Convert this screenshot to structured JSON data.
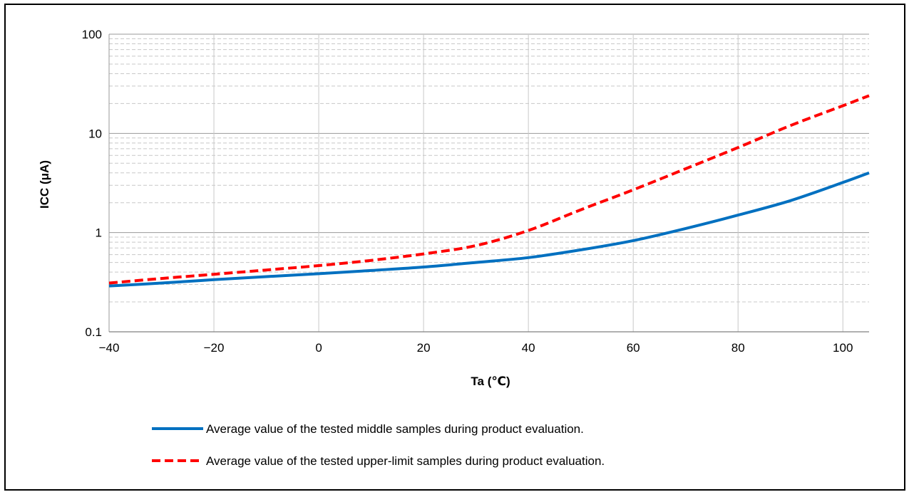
{
  "chart_data": {
    "type": "line",
    "title": "",
    "xlabel": "Ta (℃)",
    "ylabel": "ICC (μA)",
    "xlim": [
      -40,
      105
    ],
    "ylim": [
      0.1,
      100
    ],
    "yscale": "log",
    "grid": true,
    "x_ticks": [
      "−40",
      "−20",
      "0",
      "20",
      "40",
      "60",
      "80",
      "100"
    ],
    "x_tick_values": [
      -40,
      -20,
      0,
      20,
      40,
      60,
      80,
      100
    ],
    "y_ticks": [
      "0.1",
      "1",
      "10",
      "100"
    ],
    "y_tick_values": [
      0.1,
      1,
      10,
      100
    ],
    "legend_position": "bottom",
    "series": [
      {
        "name": "Average value of the tested middle samples during product evaluation.",
        "color": "#0070c0",
        "style": "solid",
        "x": [
          -40,
          -30,
          -20,
          -10,
          0,
          10,
          20,
          30,
          40,
          50,
          60,
          70,
          80,
          90,
          100,
          105
        ],
        "y": [
          0.29,
          0.31,
          0.335,
          0.36,
          0.385,
          0.415,
          0.45,
          0.5,
          0.56,
          0.67,
          0.83,
          1.1,
          1.5,
          2.1,
          3.2,
          4.0
        ]
      },
      {
        "name": "Average value of the tested upper-limit samples during product evaluation.",
        "color": "#ff0000",
        "style": "dashed",
        "x": [
          -40,
          -30,
          -20,
          -10,
          0,
          10,
          20,
          30,
          40,
          50,
          60,
          70,
          80,
          90,
          100,
          105
        ],
        "y": [
          0.31,
          0.345,
          0.38,
          0.42,
          0.465,
          0.525,
          0.61,
          0.74,
          1.05,
          1.7,
          2.7,
          4.4,
          7.2,
          12,
          19,
          24
        ]
      }
    ]
  }
}
